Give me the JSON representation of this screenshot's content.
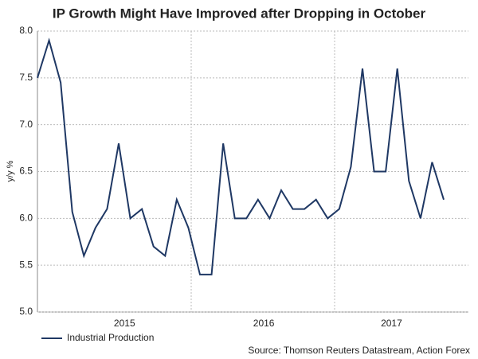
{
  "chart_data": {
    "type": "line",
    "title": "IP Growth Might Have Improved after Dropping in October",
    "y_label": "y/y %",
    "source": "Source: Thomson Reuters Datastream, Action Forex",
    "categories": [
      null,
      null,
      null,
      null,
      null,
      null,
      null,
      "2015",
      null,
      null,
      null,
      null,
      null,
      null,
      null,
      null,
      null,
      null,
      null,
      "2016",
      null,
      null,
      null,
      null,
      null,
      null,
      null,
      null,
      null,
      null,
      "2017",
      null,
      null,
      null,
      null,
      null
    ],
    "series": [
      {
        "name": "Industrial Production",
        "color": "#1f3864",
        "values": [
          7.5,
          7.9,
          7.45,
          6.07,
          5.6,
          5.9,
          6.1,
          6.8,
          6.0,
          6.1,
          5.7,
          5.6,
          6.2,
          5.9,
          5.4,
          5.4,
          6.8,
          6.0,
          6.0,
          6.2,
          6.0,
          6.3,
          6.1,
          6.1,
          6.2,
          6.0,
          6.1,
          6.55,
          7.6,
          6.5,
          6.5,
          7.6,
          6.4,
          6.0,
          6.6,
          6.2
        ]
      }
    ],
    "ylim": [
      5,
      8
    ],
    "yticks": [
      {
        "value": 5,
        "label": "5.0"
      },
      5.5,
      {
        "value": 6,
        "label": "6.0"
      },
      6.5,
      {
        "value": 7,
        "label": "7.0"
      },
      7.5,
      {
        "value": 8,
        "label": "8.0"
      }
    ],
    "grid": true
  }
}
